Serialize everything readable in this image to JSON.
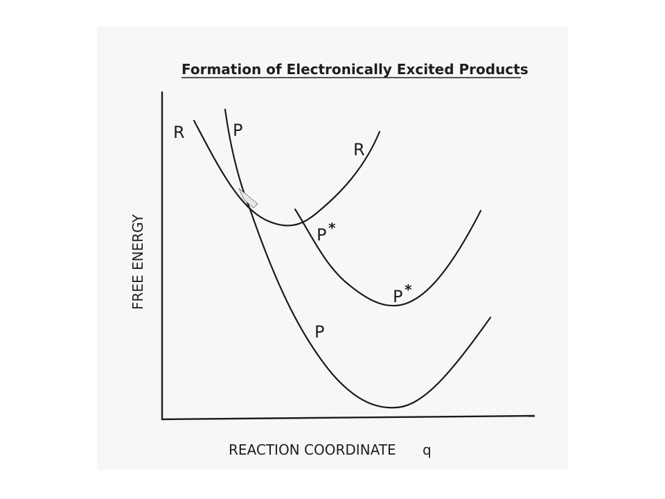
{
  "title": "Formation of Electronically Excited Products",
  "axes": {
    "y_label": "FREE ENERGY",
    "x_label": "REACTION COORDINATE",
    "x_symbol": "q"
  },
  "curves": {
    "reactant": {
      "label": "R"
    },
    "product_ground": {
      "label": "P"
    },
    "product_excited": {
      "label": "P",
      "marker": "*"
    }
  }
}
